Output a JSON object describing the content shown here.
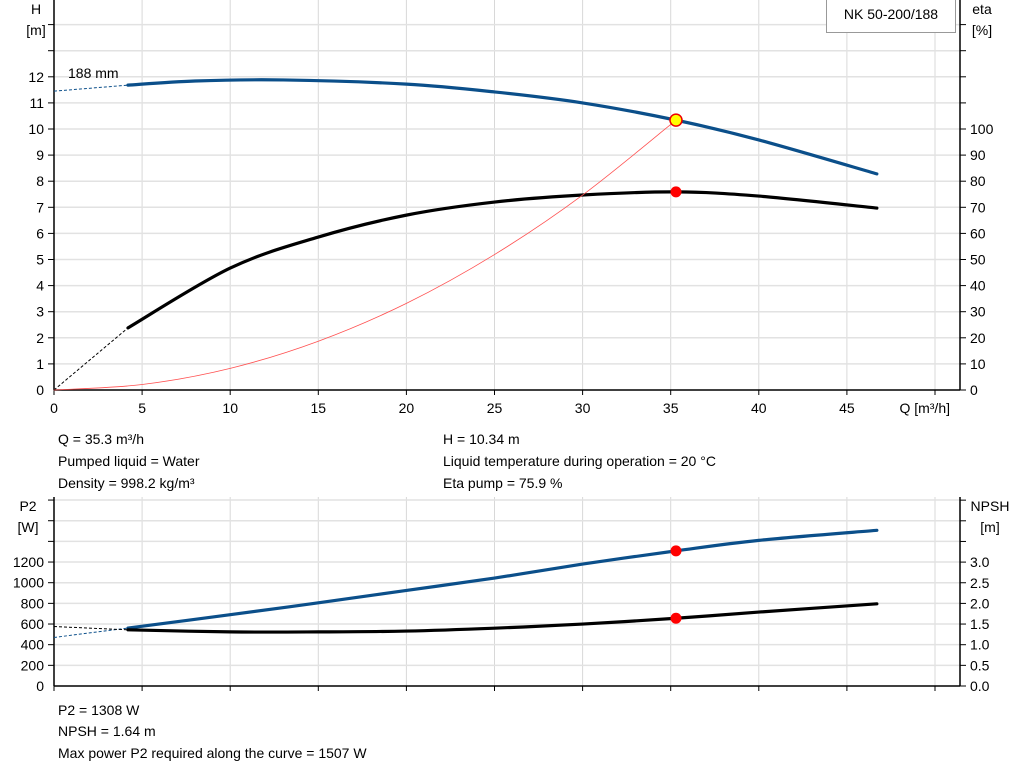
{
  "chart_data": [
    {
      "type": "line",
      "legend": "NK 50-200/188",
      "impeller_label": "188 mm",
      "xlabel": "Q [m³/h]",
      "ylabel_left": "H\n[m]",
      "ylabel_right": "eta\n[%]",
      "xlim": [
        0,
        50
      ],
      "ylim_left": [
        0,
        15
      ],
      "ylim_right": [
        0,
        150
      ],
      "x_ticks": [
        0,
        5,
        10,
        15,
        20,
        25,
        30,
        35,
        40,
        45
      ],
      "y_ticks_left": [
        0,
        1,
        2,
        3,
        4,
        5,
        6,
        7,
        8,
        9,
        10,
        11,
        12
      ],
      "y_ticks_right": [
        0,
        10,
        20,
        30,
        40,
        50,
        60,
        70,
        80,
        90,
        100
      ],
      "grid": true,
      "series": [
        {
          "id": "head",
          "axis": "left",
          "color": "#0b4f8a",
          "extrapolated_from": [
            0,
            11.45
          ],
          "x": [
            4.2,
            8,
            13,
            20,
            25,
            30,
            35.3,
            40,
            46.7
          ],
          "y": [
            11.68,
            11.84,
            11.88,
            11.72,
            11.42,
            11.0,
            10.34,
            9.58,
            8.28
          ]
        },
        {
          "id": "eta",
          "axis": "left",
          "color": "#000000",
          "extrapolated_from": [
            0,
            0
          ],
          "x": [
            4.2,
            10,
            15,
            20,
            25,
            30,
            35.3,
            40,
            46.7
          ],
          "y": [
            2.38,
            4.67,
            5.86,
            6.7,
            7.2,
            7.47,
            7.59,
            7.43,
            6.97
          ]
        },
        {
          "id": "system",
          "axis": "left",
          "color": "#ff5050",
          "x": [
            0,
            5,
            10,
            15,
            20,
            25,
            30,
            35.3
          ],
          "y": [
            0,
            0.21,
            0.83,
            1.87,
            3.32,
            5.19,
            7.47,
            10.34
          ]
        }
      ],
      "operating_points": [
        {
          "x": 35.3,
          "y": 10.34,
          "color": "#ffff00"
        },
        {
          "x": 35.3,
          "y": 7.59,
          "color": "#ff0000"
        }
      ]
    },
    {
      "type": "line",
      "xlabel": "",
      "ylabel_left": "P2\n[W]",
      "ylabel_right": "NPSH\n[m]",
      "xlim": [
        0,
        50
      ],
      "ylim_left": [
        0,
        1830
      ],
      "ylim_right": [
        0,
        4.575
      ],
      "y_ticks_left": [
        0,
        200,
        400,
        600,
        800,
        1000,
        1200
      ],
      "y_ticks_right": [
        "0.0",
        "0.5",
        "1.0",
        "1.5",
        "2.0",
        "2.5",
        "3.0"
      ],
      "grid": true,
      "series": [
        {
          "id": "p2",
          "axis": "left",
          "color": "#0b4f8a",
          "extrapolated_from": [
            0,
            470
          ],
          "x": [
            4.2,
            10,
            15,
            20,
            25,
            30,
            35.3,
            40,
            46.7
          ],
          "y": [
            561,
            690,
            805,
            925,
            1045,
            1180,
            1308,
            1410,
            1507
          ]
        },
        {
          "id": "npsh",
          "axis": "right",
          "color": "#000000",
          "extrapolated_from": [
            0,
            1.44
          ],
          "x": [
            4.2,
            10,
            15,
            20,
            25,
            30,
            35.3,
            40,
            46.7
          ],
          "y": [
            1.36,
            1.31,
            1.31,
            1.33,
            1.4,
            1.5,
            1.64,
            1.79,
            1.99
          ]
        }
      ],
      "operating_points": [
        {
          "x": 35.3,
          "y": 1308,
          "axis": "left",
          "color": "#ff0000"
        },
        {
          "x": 35.3,
          "y": 1.64,
          "axis": "right",
          "color": "#ff0000"
        }
      ]
    }
  ],
  "info_top": {
    "q": "Q = 35.3 m³/h",
    "liquid": "Pumped liquid = Water",
    "density": "Density = 998.2 kg/m³",
    "h": "H = 10.34 m",
    "temp": "Liquid temperature during operation = 20 °C",
    "eta": "Eta pump = 75.9 %"
  },
  "info_bottom": {
    "p2": "P2 = 1308 W",
    "npsh": "NPSH = 1.64 m",
    "maxp": "Max power P2 required along the curve = 1507 W"
  }
}
